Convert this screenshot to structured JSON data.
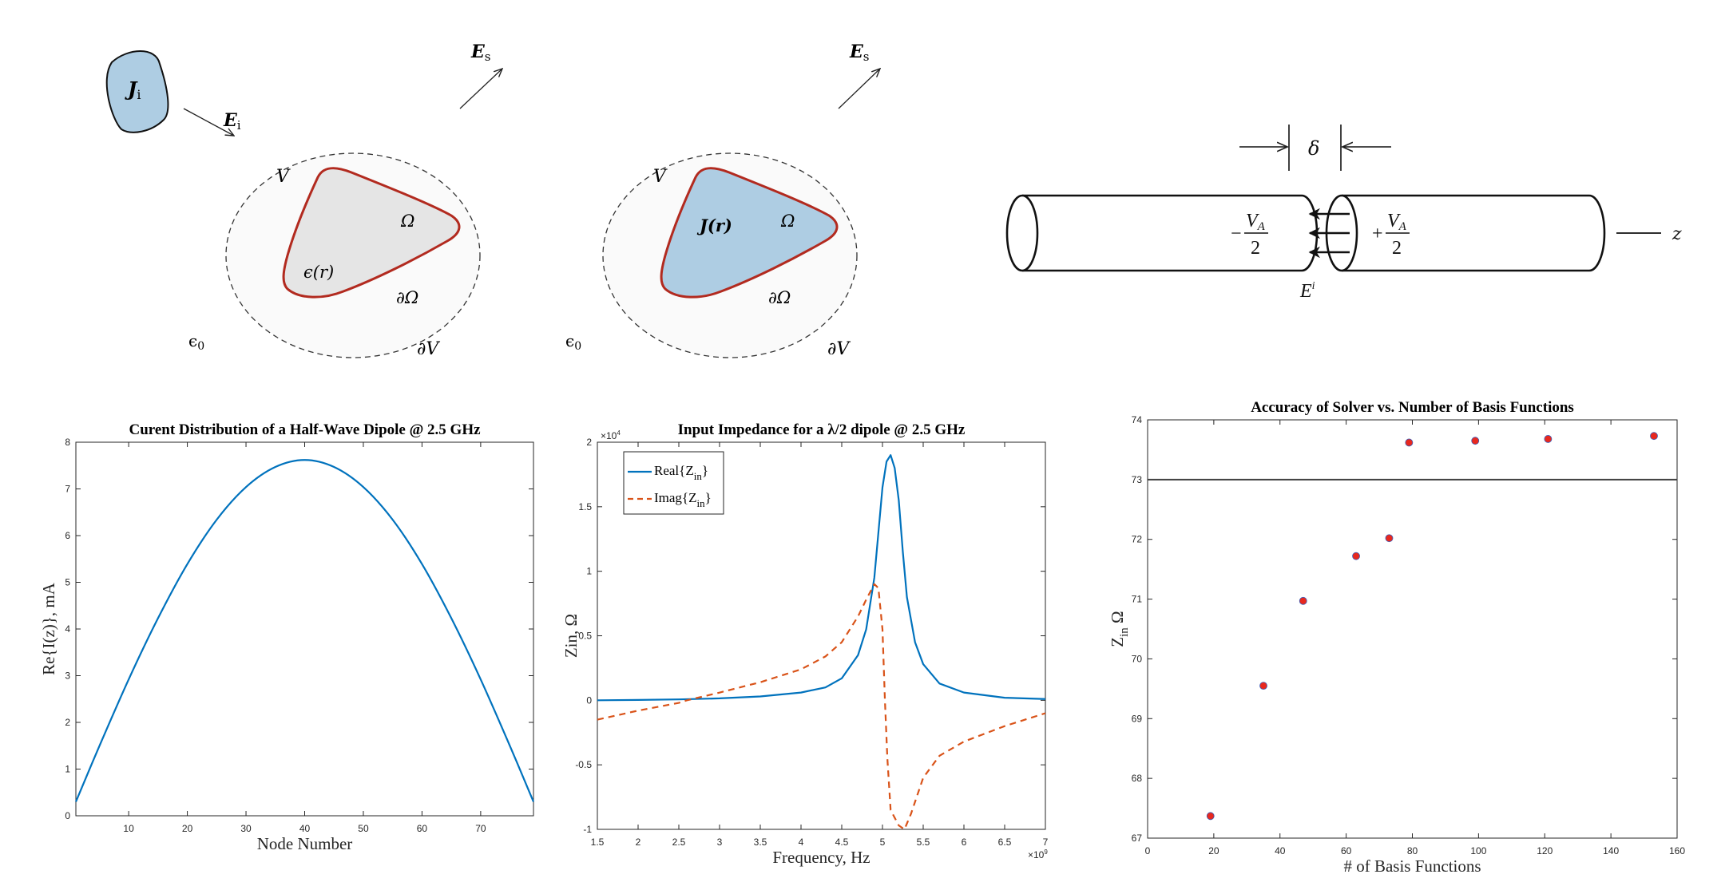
{
  "diagram_scattering": {
    "source": {
      "main": "J",
      "sub": "i"
    },
    "incident": {
      "main": "E",
      "sub": "i"
    },
    "scattered": {
      "main": "E",
      "sub": "s"
    },
    "volume": "V",
    "region": "Ω",
    "permittivity": "ϵ(r)",
    "region_boundary": "∂Ω",
    "volume_boundary": "∂V",
    "background": {
      "main": "ϵ",
      "sub": "0"
    },
    "colors": {
      "source_fill": "#aecde3",
      "region_fill": "#e5e5e5",
      "boundary": "#b22a1f"
    }
  },
  "diagram_radiation": {
    "scattered": {
      "main": "E",
      "sub": "s"
    },
    "volume": "V",
    "current": "J(r)",
    "region": "Ω",
    "region_boundary": "∂Ω",
    "volume_boundary": "∂V",
    "background": {
      "main": "ϵ",
      "sub": "0"
    },
    "colors": {
      "region_fill": "#aecde3",
      "boundary": "#b22a1f"
    }
  },
  "diagram_dipole": {
    "gap": "δ",
    "left_voltage": {
      "sign": "−",
      "num": "V",
      "num_sub": "A",
      "den": "2"
    },
    "right_voltage": {
      "sign": "+",
      "num": "V",
      "num_sub": "A",
      "den": "2"
    },
    "field": {
      "main": "E",
      "sup": "i"
    },
    "axis": "z"
  },
  "chart_data": [
    {
      "type": "line",
      "title": "Curent Distribution of a Half-Wave Dipole @ 2.5 GHz",
      "xlabel": "Node Number",
      "ylabel": "Re{I(z)}, mA",
      "xlim": [
        1,
        79
      ],
      "ylim": [
        0,
        8
      ],
      "xticks": [
        10,
        20,
        30,
        40,
        50,
        60,
        70
      ],
      "yticks": [
        0,
        1,
        2,
        3,
        4,
        5,
        6,
        7,
        8
      ],
      "grid": false,
      "series": [
        {
          "name": "Re{I(z)}",
          "color": "#0072BD",
          "x": [
            1,
            5,
            10,
            15,
            20,
            25,
            30,
            35,
            40,
            45,
            50,
            55,
            60,
            65,
            70,
            75,
            79
          ],
          "y": [
            0.3,
            1.49,
            2.92,
            4.23,
            5.39,
            6.34,
            7.04,
            7.47,
            7.62,
            7.47,
            7.04,
            6.34,
            5.39,
            4.23,
            2.92,
            1.49,
            0.3
          ]
        }
      ]
    },
    {
      "type": "line",
      "title": "Input Impedance for a λ/2 dipole @ 2.5 GHz",
      "xlabel": "Frequency, Hz",
      "ylabel": "Zin, Ω",
      "x_multiplier": "×10",
      "x_exponent": "9",
      "y_multiplier": "×10",
      "y_exponent": "4",
      "xlim": [
        1.5,
        7
      ],
      "ylim": [
        -1,
        2
      ],
      "xticks": [
        1.5,
        2,
        2.5,
        3,
        3.5,
        4,
        4.5,
        5,
        5.5,
        6,
        6.5,
        7
      ],
      "yticks": [
        -1,
        -0.5,
        0,
        0.5,
        1,
        1.5,
        2
      ],
      "grid": false,
      "legend": {
        "placement": "top-left",
        "entries": [
          {
            "main": "Real{Z",
            "sub": "in",
            "end": "}"
          },
          {
            "main": "Imag{Z",
            "sub": "in",
            "end": "}"
          }
        ]
      },
      "series": [
        {
          "name": "Real{Zin}",
          "color": "#0072BD",
          "style": "solid",
          "x": [
            1.5,
            2,
            2.5,
            3,
            3.5,
            4,
            4.3,
            4.5,
            4.7,
            4.8,
            4.9,
            4.95,
            5.0,
            5.05,
            5.1,
            5.15,
            5.2,
            5.25,
            5.3,
            5.4,
            5.5,
            5.7,
            6,
            6.5,
            7
          ],
          "y": [
            0.0,
            0.003,
            0.007,
            0.015,
            0.03,
            0.06,
            0.1,
            0.17,
            0.35,
            0.55,
            0.95,
            1.3,
            1.65,
            1.85,
            1.9,
            1.8,
            1.55,
            1.15,
            0.8,
            0.45,
            0.28,
            0.13,
            0.06,
            0.02,
            0.01
          ]
        },
        {
          "name": "Imag{Zin}",
          "color": "#D95319",
          "style": "dashed",
          "x": [
            1.5,
            2,
            2.5,
            2.6,
            3,
            3.5,
            4,
            4.3,
            4.5,
            4.7,
            4.8,
            4.9,
            4.95,
            5.0,
            5.03,
            5.06,
            5.1,
            5.2,
            5.27,
            5.35,
            5.5,
            5.7,
            6,
            6.5,
            7
          ],
          "y": [
            -0.15,
            -0.08,
            -0.02,
            0,
            0.06,
            0.14,
            0.24,
            0.34,
            0.45,
            0.65,
            0.78,
            0.9,
            0.87,
            0.55,
            0.0,
            -0.45,
            -0.85,
            -0.97,
            -1.0,
            -0.88,
            -0.6,
            -0.43,
            -0.32,
            -0.2,
            -0.1
          ]
        }
      ]
    },
    {
      "type": "scatter",
      "title": "Accuracy of Solver vs. Number of Basis Functions",
      "xlabel": "# of Basis Functions",
      "ylabel": {
        "main": "Z",
        "sub": "in",
        "end": " Ω"
      },
      "xlim": [
        0,
        160
      ],
      "ylim": [
        67,
        74
      ],
      "xticks": [
        0,
        20,
        40,
        60,
        80,
        100,
        120,
        140,
        160
      ],
      "yticks": [
        67,
        68,
        69,
        70,
        71,
        72,
        73,
        74
      ],
      "grid": false,
      "reference_line": {
        "y": 73,
        "color": "#404040"
      },
      "series": [
        {
          "name": "Zin",
          "color": "#e8281e",
          "edge": "#3b5cb8",
          "x": [
            19,
            35,
            47,
            63,
            73,
            79,
            99,
            121,
            153
          ],
          "y": [
            67.37,
            69.55,
            70.97,
            71.72,
            72.02,
            73.62,
            73.65,
            73.68,
            73.73
          ]
        }
      ]
    }
  ]
}
